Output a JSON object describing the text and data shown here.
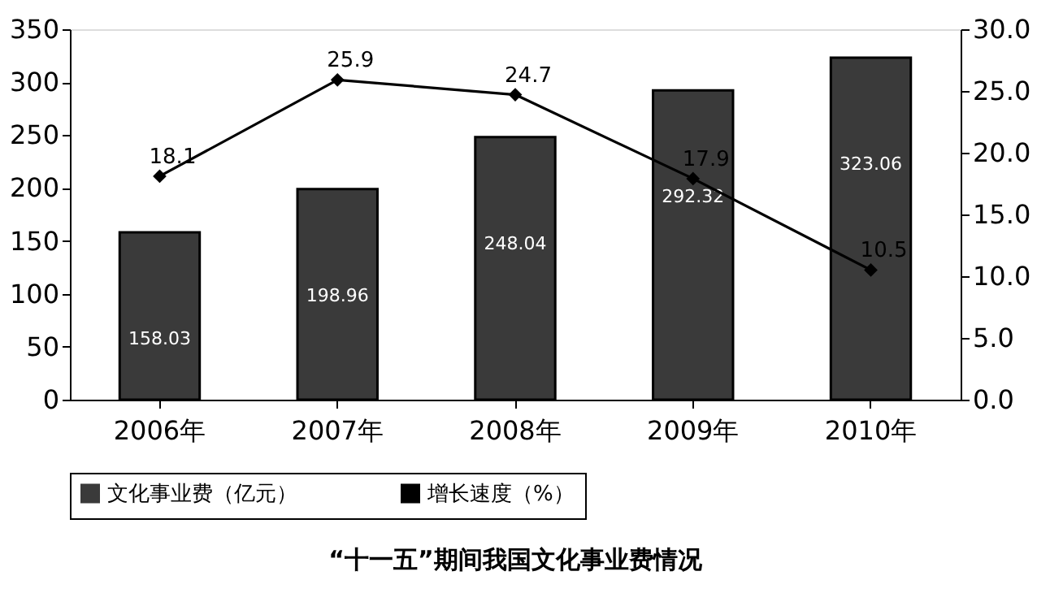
{
  "chart_data": {
    "type": "bar",
    "title": "“十一五”期间我国文化事业费情况",
    "categories": [
      "2006年",
      "2007年",
      "2008年",
      "2009年",
      "2010年"
    ],
    "series": [
      {
        "name": "文化事业费（亿元）",
        "color": "#3a3a3a",
        "values": [
          158.03,
          198.96,
          248.04,
          292.32,
          323.06
        ]
      },
      {
        "name": "增长速度（%）",
        "type": "line",
        "axis": "y2",
        "color": "#000000",
        "marker": "diamond",
        "values": [
          18.1,
          25.9,
          24.7,
          17.9,
          10.5
        ]
      }
    ],
    "data_labels": true,
    "ylim": [
      0,
      350
    ],
    "yticks": [
      0,
      50,
      100,
      150,
      200,
      250,
      300,
      350
    ],
    "y2lim": [
      0,
      30
    ],
    "y2ticks": [
      {
        "value": 0,
        "label": "0.0"
      },
      {
        "value": 5,
        "label": "5.0"
      },
      {
        "value": 10,
        "label": "10.0"
      },
      {
        "value": 15,
        "label": "15.0"
      },
      {
        "value": 20,
        "label": "20.0"
      },
      {
        "value": 25,
        "label": "25.0"
      },
      {
        "value": 30,
        "label": "30.0"
      }
    ],
    "grid": false,
    "legend": "bottom"
  }
}
